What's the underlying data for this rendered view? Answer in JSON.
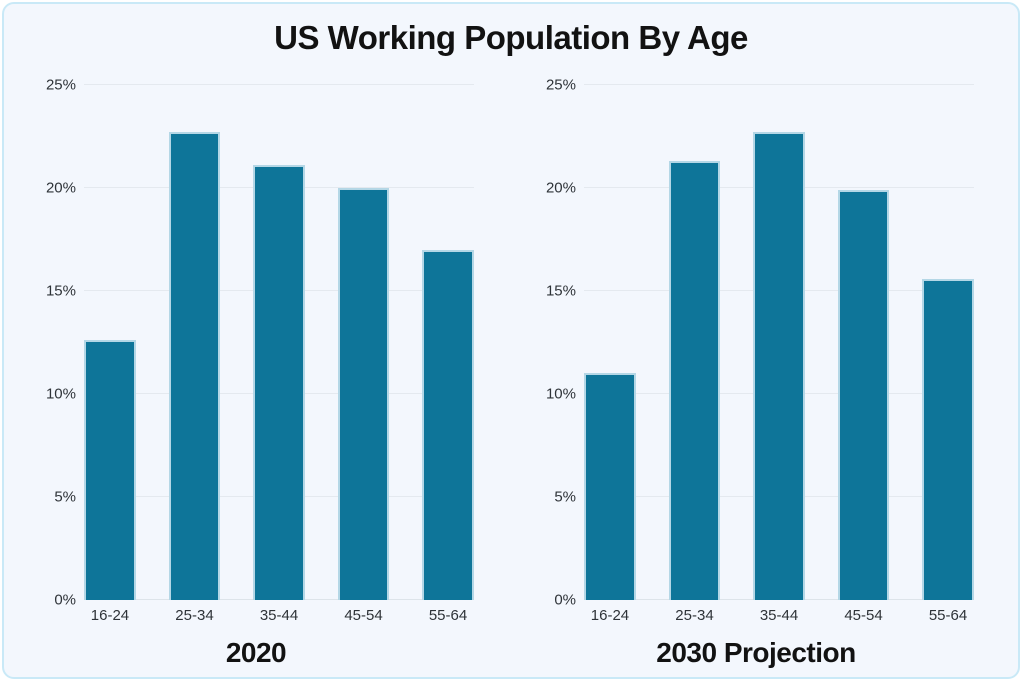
{
  "title": "US Working Population By Age",
  "colors": {
    "bar_fill": "#0e7599",
    "bar_edge": "#b4d7e6",
    "card_background": "#f3f7fd",
    "card_border": "#c9e9f7",
    "gridline": "#e4e9ef",
    "text": "#121212",
    "tick_text": "#2e3338"
  },
  "chart_data": [
    {
      "type": "bar",
      "subtitle": "2020",
      "categories": [
        "16-24",
        "25-34",
        "35-44",
        "45-54",
        "55-64"
      ],
      "values": [
        12.6,
        22.7,
        21.1,
        20.0,
        17.0
      ],
      "yticks": [
        {
          "value": 0,
          "label": "0%"
        },
        {
          "value": 5,
          "label": "5%"
        },
        {
          "value": 10,
          "label": "10%"
        },
        {
          "value": 15,
          "label": "15%"
        },
        {
          "value": 20,
          "label": "20%"
        },
        {
          "value": 25,
          "label": "25%"
        }
      ],
      "ylim": [
        0,
        25
      ],
      "grid": true,
      "legend": "none"
    },
    {
      "type": "bar",
      "subtitle": "2030 Projection",
      "categories": [
        "16-24",
        "25-34",
        "35-44",
        "45-54",
        "55-64"
      ],
      "values": [
        11.0,
        21.3,
        22.7,
        19.9,
        15.6
      ],
      "yticks": [
        {
          "value": 0,
          "label": "0%"
        },
        {
          "value": 5,
          "label": "5%"
        },
        {
          "value": 10,
          "label": "10%"
        },
        {
          "value": 15,
          "label": "15%"
        },
        {
          "value": 20,
          "label": "20%"
        },
        {
          "value": 25,
          "label": "25%"
        }
      ],
      "ylim": [
        0,
        25
      ],
      "grid": true,
      "legend": "none"
    }
  ]
}
